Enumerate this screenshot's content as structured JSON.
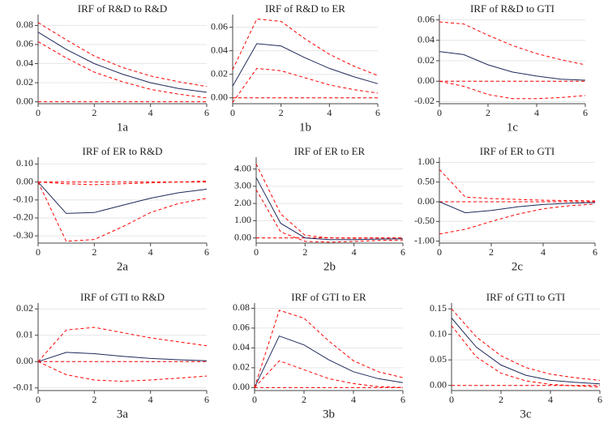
{
  "chart_data": [
    {
      "type": "line",
      "title": "IRF of R&D to R&D",
      "caption": "1a",
      "x": [
        0,
        1,
        2,
        3,
        4,
        5,
        6
      ],
      "xlim": [
        0,
        6
      ],
      "xticks": [
        0,
        2,
        4,
        6
      ],
      "ylim": [
        -0.002,
        0.088
      ],
      "yticks": [
        {
          "value": 0,
          "label": "0.00"
        },
        {
          "value": 0.02,
          "label": "0.02"
        },
        {
          "value": 0.04,
          "label": "0.04"
        },
        {
          "value": 0.06,
          "label": "0.06"
        },
        {
          "value": 0.08,
          "label": "0.08"
        }
      ],
      "grid": true,
      "hline": 0,
      "series": [
        {
          "color": "#1f2a5c",
          "dash": false,
          "values": [
            0.073,
            0.055,
            0.04,
            0.029,
            0.02,
            0.014,
            0.01
          ]
        },
        {
          "color": "#ff0000",
          "dash": true,
          "values": [
            0.083,
            0.065,
            0.048,
            0.036,
            0.027,
            0.021,
            0.016
          ]
        },
        {
          "color": "#ff0000",
          "dash": true,
          "values": [
            0.063,
            0.046,
            0.031,
            0.021,
            0.013,
            0.008,
            0.004
          ]
        }
      ]
    },
    {
      "type": "line",
      "title": "IRF of R&D to ER",
      "caption": "1b",
      "x": [
        0,
        1,
        2,
        3,
        4,
        5,
        6
      ],
      "xlim": [
        0,
        6
      ],
      "xticks": [
        0,
        2,
        4,
        6
      ],
      "ylim": [
        -0.005,
        0.068
      ],
      "yticks": [
        {
          "value": 0,
          "label": "0.00"
        },
        {
          "value": 0.02,
          "label": "0.02"
        },
        {
          "value": 0.04,
          "label": "0.04"
        },
        {
          "value": 0.06,
          "label": "0.06"
        }
      ],
      "grid": true,
      "hline": 0,
      "series": [
        {
          "color": "#1f2a5c",
          "dash": false,
          "values": [
            0.01,
            0.046,
            0.044,
            0.034,
            0.025,
            0.018,
            0.012
          ]
        },
        {
          "color": "#ff0000",
          "dash": true,
          "values": [
            0.024,
            0.067,
            0.065,
            0.05,
            0.037,
            0.027,
            0.019
          ]
        },
        {
          "color": "#ff0000",
          "dash": true,
          "values": [
            -0.004,
            0.025,
            0.023,
            0.017,
            0.011,
            0.007,
            0.004
          ]
        }
      ]
    },
    {
      "type": "line",
      "title": "IRF of R&D to GTI",
      "caption": "1c",
      "x": [
        0,
        1,
        2,
        3,
        4,
        5,
        6
      ],
      "xlim": [
        0,
        6
      ],
      "xticks": [
        0,
        2,
        4,
        6
      ],
      "ylim": [
        -0.022,
        0.062
      ],
      "yticks": [
        {
          "value": -0.02,
          "label": "-0.02"
        },
        {
          "value": 0,
          "label": "0.00"
        },
        {
          "value": 0.02,
          "label": "0.02"
        },
        {
          "value": 0.04,
          "label": "0.04"
        },
        {
          "value": 0.06,
          "label": "0.06"
        }
      ],
      "grid": true,
      "hline": 0,
      "series": [
        {
          "color": "#1f2a5c",
          "dash": false,
          "values": [
            0.029,
            0.026,
            0.016,
            0.009,
            0.005,
            0.002,
            0.001
          ]
        },
        {
          "color": "#ff0000",
          "dash": true,
          "values": [
            0.058,
            0.056,
            0.045,
            0.035,
            0.027,
            0.021,
            0.016
          ]
        },
        {
          "color": "#ff0000",
          "dash": true,
          "values": [
            0.0,
            -0.005,
            -0.013,
            -0.017,
            -0.017,
            -0.016,
            -0.014
          ]
        }
      ]
    },
    {
      "type": "line",
      "title": "IRF of ER to R&D",
      "caption": "2a",
      "x": [
        0,
        1,
        2,
        3,
        4,
        5,
        6
      ],
      "xlim": [
        0,
        6
      ],
      "xticks": [
        0,
        2,
        4,
        6
      ],
      "ylim": [
        -0.34,
        0.12
      ],
      "yticks": [
        {
          "value": 0.1,
          "label": "0.10"
        },
        {
          "value": 0,
          "label": "0.00"
        },
        {
          "value": -0.1,
          "label": "-0.10"
        },
        {
          "value": -0.2,
          "label": "-0.20"
        },
        {
          "value": -0.3,
          "label": "-0.30"
        }
      ],
      "grid": true,
      "hline": 0,
      "series": [
        {
          "color": "#1f2a5c",
          "dash": false,
          "values": [
            0,
            -0.175,
            -0.17,
            -0.13,
            -0.09,
            -0.06,
            -0.04
          ]
        },
        {
          "color": "#ff0000",
          "dash": true,
          "values": [
            0,
            -0.01,
            -0.015,
            -0.01,
            -0.005,
            0,
            0.005
          ]
        },
        {
          "color": "#ff0000",
          "dash": true,
          "values": [
            0,
            -0.33,
            -0.32,
            -0.25,
            -0.17,
            -0.12,
            -0.09
          ]
        }
      ]
    },
    {
      "type": "line",
      "title": "IRF of ER to ER",
      "caption": "2b",
      "x": [
        0,
        1,
        2,
        3,
        4,
        5,
        6
      ],
      "xlim": [
        0,
        6
      ],
      "xticks": [
        0,
        2,
        4,
        6
      ],
      "ylim": [
        -0.3,
        4.5
      ],
      "yticks": [
        {
          "value": 0,
          "label": "0.00"
        },
        {
          "value": 1,
          "label": "1.00"
        },
        {
          "value": 2,
          "label": "2.00"
        },
        {
          "value": 3,
          "label": "3.00"
        },
        {
          "value": 4,
          "label": "4.00"
        }
      ],
      "grid": true,
      "hline": 0,
      "series": [
        {
          "color": "#1f2a5c",
          "dash": false,
          "values": [
            3.5,
            0.85,
            0.0,
            -0.1,
            -0.1,
            -0.07,
            -0.05
          ]
        },
        {
          "color": "#ff0000",
          "dash": true,
          "values": [
            4.3,
            1.4,
            0.15,
            0.0,
            -0.02,
            -0.01,
            0.0
          ]
        },
        {
          "color": "#ff0000",
          "dash": true,
          "values": [
            2.8,
            0.35,
            -0.2,
            -0.25,
            -0.2,
            -0.15,
            -0.12
          ]
        }
      ]
    },
    {
      "type": "line",
      "title": "IRF of ER to GTI",
      "caption": "2c",
      "x": [
        0,
        1,
        2,
        3,
        4,
        5,
        6
      ],
      "xlim": [
        0,
        6
      ],
      "xticks": [
        0,
        2,
        4,
        6
      ],
      "ylim": [
        -1.05,
        1.05
      ],
      "yticks": [
        {
          "value": 1,
          "label": "1.00"
        },
        {
          "value": 0.5,
          "label": "0.50"
        },
        {
          "value": 0,
          "label": "0.00"
        },
        {
          "value": -0.5,
          "label": "-0.50"
        },
        {
          "value": -1,
          "label": "-1.00"
        }
      ],
      "grid": true,
      "hline": 0,
      "series": [
        {
          "color": "#1f2a5c",
          "dash": false,
          "values": [
            0,
            -0.28,
            -0.22,
            -0.13,
            -0.07,
            -0.04,
            -0.02
          ]
        },
        {
          "color": "#ff0000",
          "dash": true,
          "values": [
            0.82,
            0.12,
            0.08,
            0.06,
            0.04,
            0.03,
            0.02
          ]
        },
        {
          "color": "#ff0000",
          "dash": true,
          "values": [
            -0.82,
            -0.7,
            -0.5,
            -0.32,
            -0.18,
            -0.1,
            -0.06
          ]
        }
      ]
    },
    {
      "type": "line",
      "title": "IRF of GTI to R&D",
      "caption": "3a",
      "x": [
        0,
        1,
        2,
        3,
        4,
        5,
        6
      ],
      "xlim": [
        0,
        6
      ],
      "xticks": [
        0,
        2,
        4,
        6
      ],
      "ylim": [
        -0.011,
        0.021
      ],
      "yticks": [
        {
          "value": -0.01,
          "label": "-0.01"
        },
        {
          "value": 0,
          "label": "0.00"
        },
        {
          "value": 0.01,
          "label": "0.01"
        },
        {
          "value": 0.02,
          "label": "0.02"
        }
      ],
      "grid": true,
      "hline": 0,
      "series": [
        {
          "color": "#1f2a5c",
          "dash": false,
          "values": [
            0,
            0.0035,
            0.003,
            0.002,
            0.0012,
            0.0007,
            0.0003
          ]
        },
        {
          "color": "#ff0000",
          "dash": true,
          "values": [
            0,
            0.012,
            0.013,
            0.011,
            0.009,
            0.0075,
            0.006
          ]
        },
        {
          "color": "#ff0000",
          "dash": true,
          "values": [
            0,
            -0.005,
            -0.007,
            -0.0075,
            -0.007,
            -0.0063,
            -0.0055
          ]
        }
      ]
    },
    {
      "type": "line",
      "title": "IRF of GTI to ER",
      "caption": "3b",
      "x": [
        0,
        1,
        2,
        3,
        4,
        5,
        6
      ],
      "xlim": [
        0,
        6
      ],
      "xticks": [
        0,
        2,
        4,
        6
      ],
      "ylim": [
        -0.003,
        0.082
      ],
      "yticks": [
        {
          "value": 0,
          "label": "0.00"
        },
        {
          "value": 0.02,
          "label": "0.02"
        },
        {
          "value": 0.04,
          "label": "0.04"
        },
        {
          "value": 0.06,
          "label": "0.06"
        },
        {
          "value": 0.08,
          "label": "0.08"
        }
      ],
      "grid": true,
      "hline": 0,
      "series": [
        {
          "color": "#1f2a5c",
          "dash": false,
          "values": [
            0,
            0.052,
            0.043,
            0.028,
            0.016,
            0.009,
            0.005
          ]
        },
        {
          "color": "#ff0000",
          "dash": true,
          "values": [
            0,
            0.078,
            0.07,
            0.047,
            0.027,
            0.016,
            0.01
          ]
        },
        {
          "color": "#ff0000",
          "dash": true,
          "values": [
            0,
            0.027,
            0.018,
            0.009,
            0.004,
            0.001,
            0.0
          ]
        }
      ]
    },
    {
      "type": "line",
      "title": "IRF of GTI to GTI",
      "caption": "3c",
      "x": [
        0,
        1,
        2,
        3,
        4,
        5,
        6
      ],
      "xlim": [
        0,
        6
      ],
      "xticks": [
        0,
        2,
        4,
        6
      ],
      "ylim": [
        -0.01,
        0.155
      ],
      "yticks": [
        {
          "value": 0,
          "label": "0.00"
        },
        {
          "value": 0.05,
          "label": "0.05"
        },
        {
          "value": 0.1,
          "label": "0.10"
        },
        {
          "value": 0.15,
          "label": "0.15"
        }
      ],
      "grid": true,
      "hline": 0,
      "series": [
        {
          "color": "#1f2a5c",
          "dash": false,
          "values": [
            0.132,
            0.075,
            0.04,
            0.02,
            0.01,
            0.006,
            0.003
          ]
        },
        {
          "color": "#ff0000",
          "dash": true,
          "values": [
            0.15,
            0.095,
            0.058,
            0.035,
            0.022,
            0.015,
            0.01
          ]
        },
        {
          "color": "#ff0000",
          "dash": true,
          "values": [
            0.117,
            0.056,
            0.024,
            0.009,
            0.002,
            -0.001,
            -0.003
          ]
        }
      ]
    }
  ]
}
